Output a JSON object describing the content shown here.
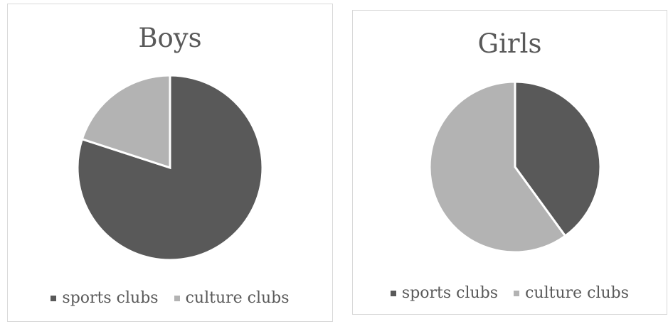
{
  "chart_data": [
    {
      "type": "pie",
      "title": "Boys",
      "categories": [
        "sports clubs",
        "culture clubs"
      ],
      "values": [
        80,
        20
      ],
      "colors": [
        "#595959",
        "#b3b3b3"
      ],
      "legend_position": "bottom"
    },
    {
      "type": "pie",
      "title": "Girls",
      "categories": [
        "sports clubs",
        "culture clubs"
      ],
      "values": [
        40,
        60
      ],
      "colors": [
        "#595959",
        "#b3b3b3"
      ],
      "legend_position": "bottom"
    }
  ]
}
